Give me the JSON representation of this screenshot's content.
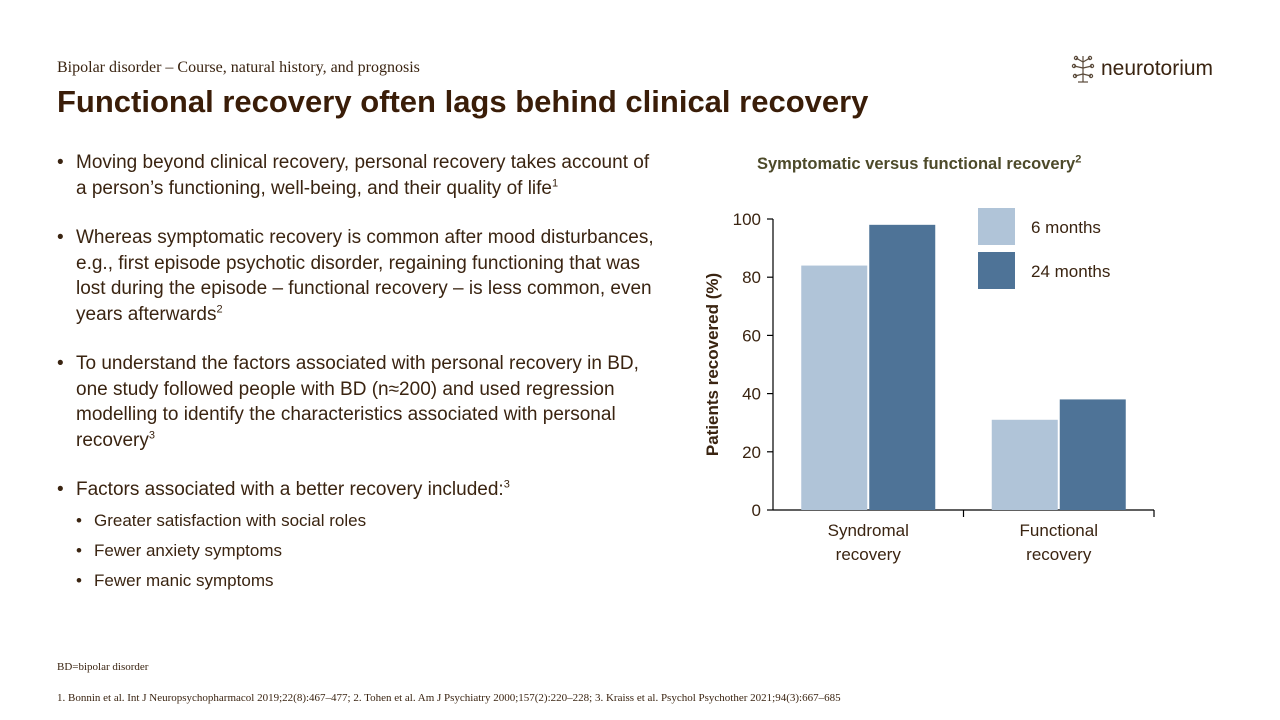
{
  "header": {
    "subtitle": "Bipolar disorder – Course, natural history, and prognosis",
    "title": "Functional recovery often lags behind clinical recovery",
    "logo_text": "neurotorium"
  },
  "bullets": [
    {
      "text": "Moving beyond clinical recovery, personal recovery takes account of a person’s functioning, well-being, and their quality of life",
      "ref": "1"
    },
    {
      "text": "Whereas symptomatic recovery is common after mood disturbances, e.g., first episode psychotic disorder, regaining functioning that was lost during the episode – functional recovery – is less common, even years afterwards",
      "ref": "2"
    },
    {
      "text": "To understand the factors associated with personal recovery in BD, one study followed people with BD (n≈200) and used regression modelling to identify the characteristics associated with personal recovery",
      "ref": "3"
    },
    {
      "text": "Factors associated with a better recovery included:",
      "ref": "3"
    }
  ],
  "sub_bullets": [
    "Greater satisfaction with social roles",
    "Fewer anxiety symptoms",
    "Fewer manic symptoms"
  ],
  "chart_data": {
    "type": "bar",
    "title": "Symptomatic versus functional recovery",
    "title_ref": "2",
    "categories": [
      "Syndromal recovery",
      "Functional recovery"
    ],
    "category_lines": [
      [
        "Syndromal",
        "recovery"
      ],
      [
        "Functional",
        "recovery"
      ]
    ],
    "series": [
      {
        "name": "6 months",
        "values": [
          84,
          31
        ],
        "color": "#b0c4d8"
      },
      {
        "name": "24 months",
        "values": [
          98,
          38
        ],
        "color": "#4e7397"
      }
    ],
    "ylabel": "Patients recovered (%)",
    "ylim": [
      0,
      100
    ],
    "yticks": [
      0,
      20,
      40,
      60,
      80,
      100
    ],
    "legend_position": "top-right"
  },
  "footer": {
    "abbreviation": "BD=bipolar disorder",
    "references": "1. Bonnin et al. Int J Neuropsychopharmacol 2019;22(8):467–477; 2. Tohen et al. Am J Psychiatry 2000;157(2):220–228; 3. Kraiss et al. Psychol Psychother 2021;94(3):667–685"
  }
}
